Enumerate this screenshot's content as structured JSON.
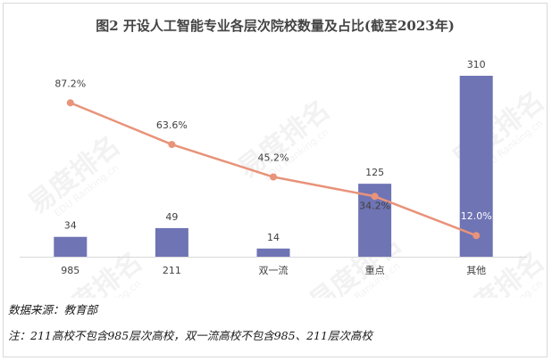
{
  "chart_data": {
    "type": "bar",
    "title": "图2 开设人工智能专业各层次院校数量及占比(截至2023年)",
    "categories": [
      "985",
      "211",
      "双一流",
      "重点",
      "其他"
    ],
    "series": [
      {
        "type": "bar",
        "values": [
          34,
          49,
          14,
          125,
          310
        ],
        "value_labels": [
          "34",
          "49",
          "14",
          "125",
          "310"
        ]
      },
      {
        "type": "line",
        "values": [
          87.2,
          63.6,
          45.2,
          34.2,
          12.0
        ],
        "value_labels": [
          "87.2%",
          "63.6%",
          "45.2%",
          "34.2%",
          "12.0%"
        ]
      }
    ],
    "ylim": [
      0,
      310
    ],
    "line_ylim": [
      0,
      100
    ],
    "grid": false,
    "legend": "none"
  },
  "source_note": "数据来源：教育部",
  "footnote": "注：211高校不包含985层次高校，双一流高校不包含985、211层次高校",
  "watermark_text": [
    "易度排名",
    "EDU Ranking.cn"
  ],
  "colors": {
    "bar": "#6f74b4",
    "line": "#e8937a",
    "axis": "#d9d9d9",
    "label": "#404040"
  }
}
